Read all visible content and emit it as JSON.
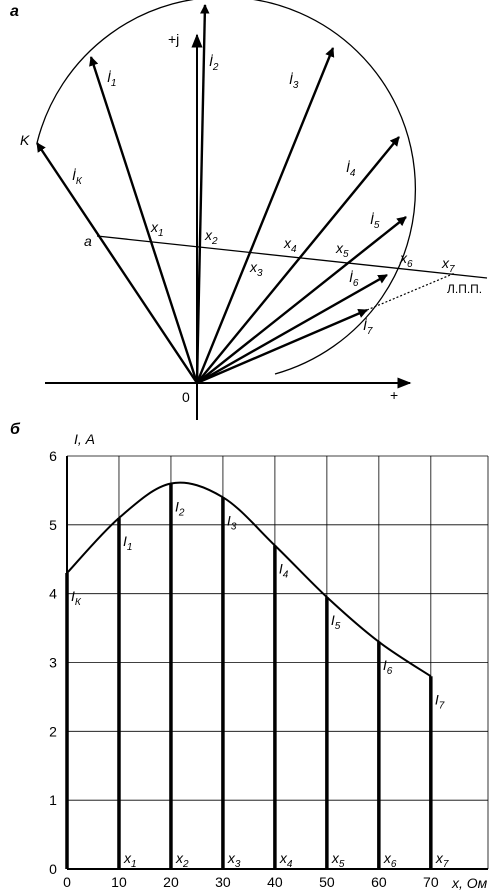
{
  "diagram": {
    "panel_label": "а",
    "axis_j": "+j",
    "axis_plus": "+",
    "origin": "0",
    "point_K": "K",
    "point_a": "a",
    "line_label": "Л.П.П.",
    "currents": [
      {
        "main": "İ",
        "sub": "К"
      },
      {
        "main": "İ",
        "sub": "1"
      },
      {
        "main": "İ",
        "sub": "2"
      },
      {
        "main": "İ",
        "sub": "3"
      },
      {
        "main": "İ",
        "sub": "4"
      },
      {
        "main": "İ",
        "sub": "5"
      },
      {
        "main": "İ",
        "sub": "6"
      },
      {
        "main": "İ",
        "sub": "7"
      }
    ],
    "distances": [
      {
        "main": "x",
        "sub": "1"
      },
      {
        "main": "x",
        "sub": "2"
      },
      {
        "main": "x",
        "sub": "3"
      },
      {
        "main": "x",
        "sub": "4"
      },
      {
        "main": "x",
        "sub": "5"
      },
      {
        "main": "x",
        "sub": "6"
      },
      {
        "main": "x",
        "sub": "7"
      }
    ]
  },
  "chart_data": {
    "type": "bar",
    "panel_label": "б",
    "y_label": "I, А",
    "x_label": "x, Ом",
    "x": [
      0,
      10,
      20,
      30,
      40,
      50,
      60,
      70
    ],
    "values": [
      4.3,
      5.1,
      5.6,
      5.4,
      4.7,
      3.95,
      3.3,
      2.8
    ],
    "bar_labels": [
      {
        "main": "I",
        "sub": "К"
      },
      {
        "main": "I",
        "sub": "1"
      },
      {
        "main": "I",
        "sub": "2"
      },
      {
        "main": "I",
        "sub": "3"
      },
      {
        "main": "I",
        "sub": "4"
      },
      {
        "main": "I",
        "sub": "5"
      },
      {
        "main": "I",
        "sub": "6"
      },
      {
        "main": "I",
        "sub": "7"
      }
    ],
    "x_labels": [
      null,
      {
        "main": "x",
        "sub": "1"
      },
      {
        "main": "x",
        "sub": "2"
      },
      {
        "main": "x",
        "sub": "3"
      },
      {
        "main": "x",
        "sub": "4"
      },
      {
        "main": "x",
        "sub": "5"
      },
      {
        "main": "x",
        "sub": "6"
      },
      {
        "main": "x",
        "sub": "7"
      }
    ],
    "color": "#000000",
    "xlim": [
      0,
      81
    ],
    "ylim": [
      0,
      6
    ],
    "xticks": [
      0,
      10,
      20,
      30,
      40,
      50,
      60,
      70
    ],
    "yticks": [
      0,
      1,
      2,
      3,
      4,
      5,
      6
    ],
    "grid": true
  }
}
